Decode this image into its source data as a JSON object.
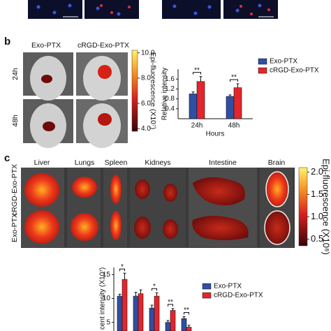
{
  "panel_b": {
    "label": "b",
    "columns": [
      "Exo-PTX",
      "cRGD-Exo-PTX"
    ],
    "rows": [
      "24h",
      "48h"
    ],
    "colorbar": {
      "label": "Epi-fluorescence (X10⁷)",
      "lim": [
        3.8,
        10.2
      ],
      "ticks": [
        {
          "value": 10,
          "label": "10.0"
        },
        {
          "value": 8,
          "label": "8.0"
        },
        {
          "value": 6,
          "label": "6.0"
        },
        {
          "value": 4,
          "label": "4.0"
        }
      ]
    }
  },
  "panel_c": {
    "label": "c",
    "columns": [
      "Liver",
      "Lungs",
      "Spleen",
      "Kidneys",
      "Intestine",
      "Brain"
    ],
    "rows": [
      "cRGD-Exo-PTX",
      "Exo-PTX"
    ],
    "colorbar": {
      "label": "Epi-fluorescence (X10⁸)",
      "lim": [
        0.35,
        2.1
      ],
      "ticks": [
        {
          "value": 2,
          "label": "2.0"
        },
        {
          "value": 1.5,
          "label": "1.5"
        },
        {
          "value": 1,
          "label": "1.0"
        },
        {
          "value": 0.5,
          "label": "0.5"
        }
      ]
    }
  },
  "chart_data": [
    {
      "type": "bar",
      "ylabel": "Relative intensity",
      "xlabel": "Hours",
      "categories": [
        "24h",
        "48h"
      ],
      "series": [
        {
          "name": "Exo-PTX",
          "color": "#2f4fa5",
          "values": [
            1.0,
            0.9
          ],
          "errors": [
            0.08,
            0.06
          ]
        },
        {
          "name": "cRGD-Exo-PTX",
          "color": "#e3262c",
          "values": [
            1.5,
            1.25
          ],
          "errors": [
            0.2,
            0.16
          ]
        }
      ],
      "ylim": [
        0,
        2.0
      ],
      "yticks": [
        0.4,
        0.8,
        1.2,
        1.6
      ],
      "annotations": [
        "**",
        "**"
      ]
    },
    {
      "type": "bar",
      "ylabel": "cent intensity (X10⁷)",
      "categories": [
        null,
        null,
        null,
        null,
        null
      ],
      "series": [
        {
          "name": "Exo-PTX",
          "color": "#2f4fa5",
          "values": [
            10.5,
            10.5,
            8,
            5,
            5.8
          ],
          "errors": [
            0.4,
            0.8,
            0.6,
            0.4,
            0.4
          ]
        },
        {
          "name": "cRGD-Exo-PTX",
          "color": "#e3262c",
          "values": [
            14,
            11,
            10.5,
            7.5,
            4
          ],
          "errors": [
            1.3,
            0.8,
            0.7,
            0.4,
            0.4
          ]
        }
      ],
      "ylim": [
        3.2,
        16.5
      ],
      "yticks": [
        5,
        10,
        15
      ],
      "annotations": [
        "*",
        null,
        "*",
        "**",
        "**"
      ]
    }
  ]
}
